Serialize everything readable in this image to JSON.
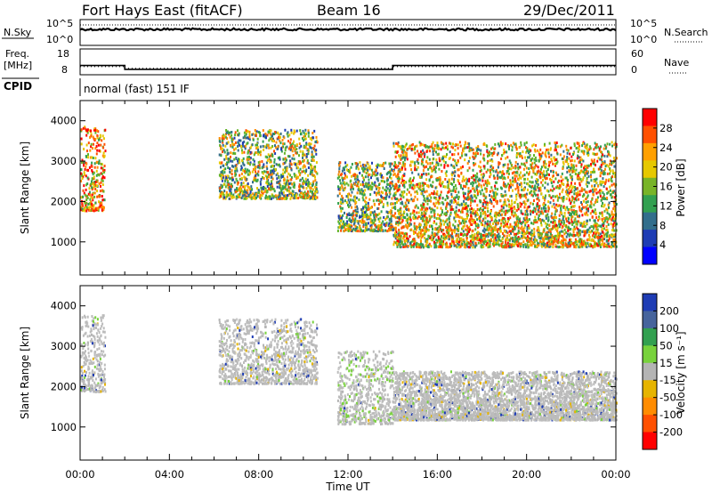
{
  "header": {
    "station": "Fort Hays East (fitACF)",
    "beam": "Beam 16",
    "date": "29/Dec/2011"
  },
  "noise_panel": {
    "left_label": "N.Sky",
    "left_ticks": [
      "10^5",
      "10^0"
    ],
    "right_label": "N.Search",
    "right_ticks": [
      "10^5",
      "10^0"
    ]
  },
  "freq_panel": {
    "left_label_1": "Freq.",
    "left_label_2": "[MHz]",
    "left_ticks": [
      "18",
      "8"
    ],
    "right_label": "Nave",
    "right_ticks": [
      "60",
      "0"
    ],
    "freq_series": {
      "x_hours": [
        0,
        2.0,
        2.0,
        14.0,
        14.0,
        24
      ],
      "mhz": [
        11.6,
        11.6,
        10.1,
        10.1,
        11.6,
        11.6
      ]
    },
    "nave_series": {
      "x_hours": [
        0,
        2.0,
        2.0,
        14.0,
        14.0,
        24
      ],
      "nave": [
        19,
        19,
        15,
        15,
        19,
        19
      ]
    }
  },
  "cpid": {
    "label": "CPID",
    "text": "normal (fast) 151 IF"
  },
  "chart_data": [
    {
      "type": "heatmap",
      "ylabel": "Slant Range [km]",
      "yticks": [
        "1000",
        "2000",
        "3000",
        "4000"
      ],
      "ylim": [
        180,
        4500
      ],
      "xlim": [
        0,
        24
      ],
      "colorbar_label": "Power [dB]",
      "colorbar_ticks": [
        "4",
        "8",
        "12",
        "16",
        "20",
        "24",
        "28"
      ],
      "colorbar_range": [
        0,
        32
      ],
      "scatter_regions": [
        {
          "x": [
            0.0,
            1.1
          ],
          "range_km": [
            1800,
            3900
          ],
          "power_db": 22
        },
        {
          "x": [
            6.2,
            10.6
          ],
          "range_km": [
            2100,
            3800
          ],
          "power_db": 14
        },
        {
          "x": [
            11.5,
            14.0
          ],
          "range_km": [
            1300,
            3000
          ],
          "power_db": 16
        },
        {
          "x": [
            14.0,
            24.0
          ],
          "range_km": [
            900,
            3500
          ],
          "power_db": 20
        }
      ]
    },
    {
      "type": "heatmap",
      "ylabel": "Slant Range [km]",
      "yticks": [
        "1000",
        "2000",
        "3000",
        "4000"
      ],
      "ylim": [
        180,
        4500
      ],
      "xlim": [
        0,
        24
      ],
      "xlabel": "Time UT",
      "xticks": [
        "00:00",
        "04:00",
        "08:00",
        "12:00",
        "16:00",
        "20:00",
        "00:00"
      ],
      "colorbar_label": "Velocity [m s⁻¹]",
      "colorbar_ticks": [
        "200",
        "100",
        "50",
        "15",
        "-15",
        "-50",
        "-100",
        "-200"
      ],
      "colorbar_colors": [
        "#1e3cb4",
        "#46649c",
        "#32a050",
        "#78d23c",
        "#b4b4b4",
        "#e6b400",
        "#ff8c00",
        "#ff5000",
        "#ff0000"
      ],
      "scatter_regions": [
        {
          "x": [
            0.0,
            1.1
          ],
          "range_km": [
            1900,
            3800
          ],
          "velocity": 0
        },
        {
          "x": [
            6.2,
            10.6
          ],
          "range_km": [
            2100,
            3700
          ],
          "velocity": 0
        },
        {
          "x": [
            11.5,
            14.0
          ],
          "range_km": [
            1100,
            2900
          ],
          "velocity": 30
        },
        {
          "x": [
            14.0,
            24.0
          ],
          "range_km": [
            1200,
            2400
          ],
          "velocity": 0
        }
      ]
    }
  ]
}
